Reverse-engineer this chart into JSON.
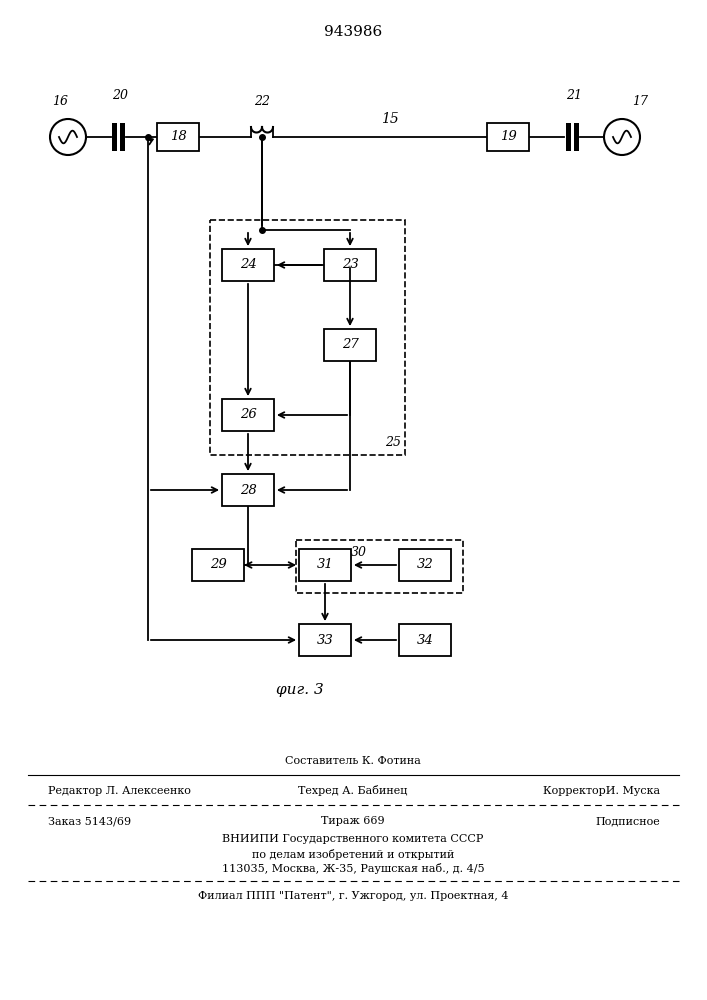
{
  "title": "943986",
  "fig_label": "φиг. 3",
  "background_color": "#ffffff",
  "footer_filial": "Филиал ППП \"Патент\", г. Ужгород, ул. Проектная, 4"
}
